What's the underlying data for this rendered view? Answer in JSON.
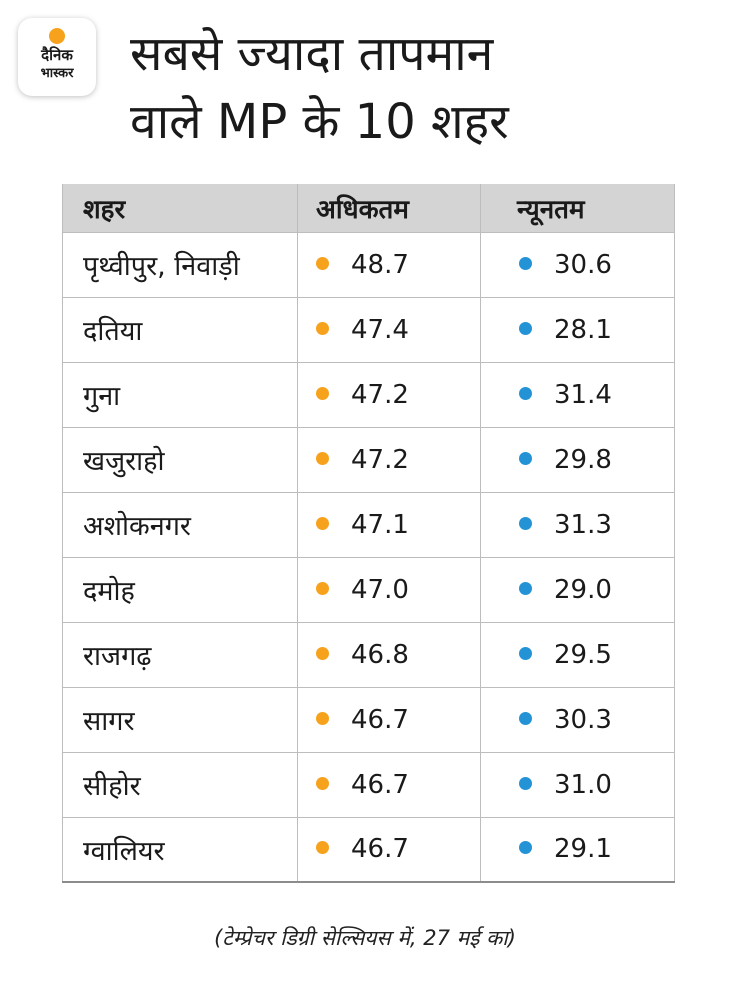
{
  "logo": {
    "line1": "दैनिक",
    "line2": "भास्कर"
  },
  "title_lines": [
    "सबसे ज्यादा तापमान",
    "वाले MP के 10 शहर"
  ],
  "colors": {
    "max_dot": "#f6a21d",
    "min_dot": "#2493d6",
    "header_bg": "#d4d4d4"
  },
  "chart_data": {
    "type": "table",
    "title": "सबसे ज्यादा तापमान वाले MP के 10 शहर",
    "columns": [
      "शहर",
      "अधिकतम",
      "न्यूनतम"
    ],
    "rows": [
      {
        "city": "पृथ्वीपुर, निवाड़ी",
        "max": "48.7",
        "min": "30.6"
      },
      {
        "city": "दतिया",
        "max": "47.4",
        "min": "28.1"
      },
      {
        "city": "गुना",
        "max": "47.2",
        "min": "31.4"
      },
      {
        "city": "खजुराहो",
        "max": "47.2",
        "min": "29.8"
      },
      {
        "city": "अशोकनगर",
        "max": "47.1",
        "min": "31.3"
      },
      {
        "city": "दमोह",
        "max": "47.0",
        "min": "29.0"
      },
      {
        "city": "राजगढ़",
        "max": "46.8",
        "min": "29.5"
      },
      {
        "city": "सागर",
        "max": "46.7",
        "min": "30.3"
      },
      {
        "city": "सीहोर",
        "max": "46.7",
        "min": "31.0"
      },
      {
        "city": "ग्वालियर",
        "max": "46.7",
        "min": "29.1"
      }
    ],
    "note": "(टेम्प्रेचर डिग्री सेल्सियस में, 27 मई का)"
  }
}
